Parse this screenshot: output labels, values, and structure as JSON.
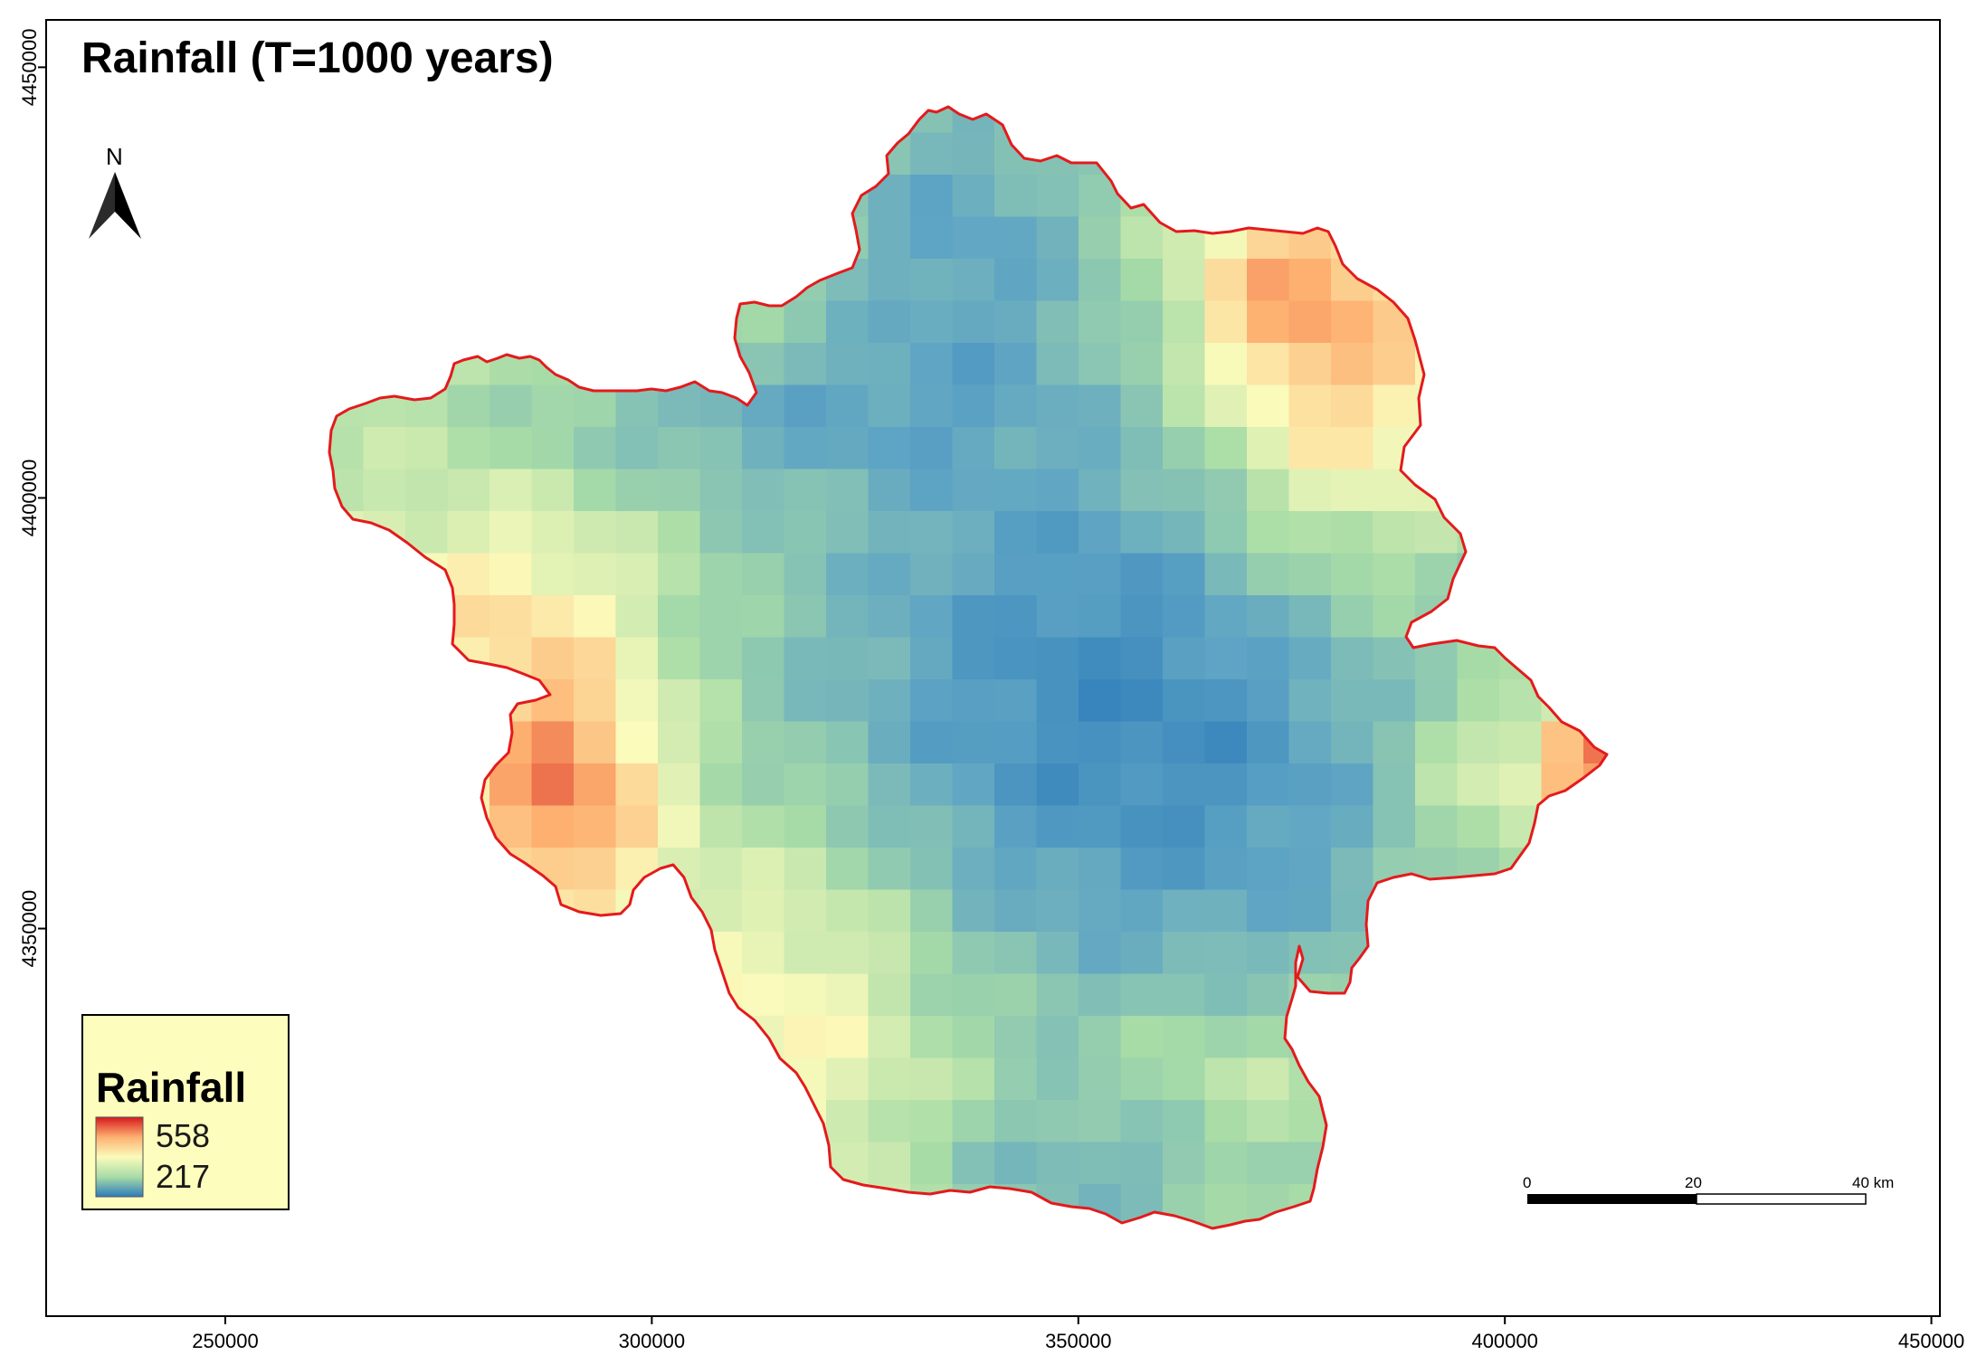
{
  "map": {
    "title": "Rainfall (T=1000 years)",
    "north_label": "N",
    "x_ticks": [
      {
        "value": 250000,
        "label": "250000"
      },
      {
        "value": 300000,
        "label": "300000"
      },
      {
        "value": 350000,
        "label": "350000"
      },
      {
        "value": 400000,
        "label": "400000"
      },
      {
        "value": 450000,
        "label": "450000"
      }
    ],
    "y_ticks": [
      {
        "value": 4450000,
        "label": "4450000"
      },
      {
        "value": 4400000,
        "label": "4400000"
      },
      {
        "value": 4350000,
        "label": "4350000"
      }
    ],
    "x_range": [
      229000,
      451000
    ],
    "y_range": [
      4455500,
      4305000
    ]
  },
  "legend": {
    "title": "Rainfall",
    "max_label": "558",
    "min_label": "217",
    "max_value": 558,
    "min_value": 217
  },
  "scale_bar": {
    "labels": [
      "0",
      "20",
      "40 km"
    ]
  },
  "colors": {
    "boundary": "#e41a1c",
    "ramp": [
      "#2b7bba",
      "#5ea4c4",
      "#a8dca7",
      "#fbfbbb",
      "#fdb070",
      "#d7191c"
    ]
  }
}
